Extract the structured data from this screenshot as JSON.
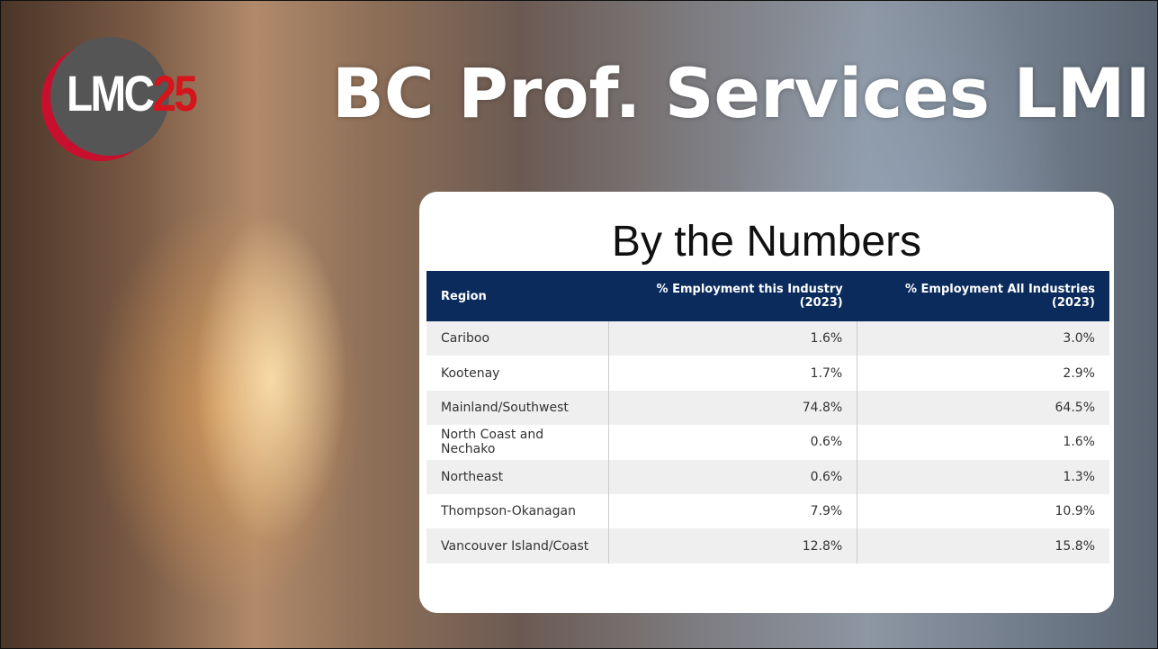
{
  "logo": {
    "text": "LMC",
    "number": "25"
  },
  "title": "BC Prof. Services LMI",
  "card": {
    "heading": "By the Numbers",
    "table": {
      "header": [
        "Region",
        "% Employment this Industry (2023)",
        "% Employment All Industries (2023)"
      ],
      "rows": [
        [
          "Cariboo",
          "1.6%",
          "3.0%"
        ],
        [
          "Kootenay",
          "1.7%",
          "2.9%"
        ],
        [
          "Mainland/Southwest",
          "74.8%",
          "64.5%"
        ],
        [
          "North Coast and Nechako",
          "0.6%",
          "1.6%"
        ],
        [
          "Northeast",
          "0.6%",
          "1.3%"
        ],
        [
          "Thompson-Okanagan",
          "7.9%",
          "10.9%"
        ],
        [
          "Vancouver Island/Coast",
          "12.8%",
          "15.8%"
        ]
      ]
    }
  }
}
